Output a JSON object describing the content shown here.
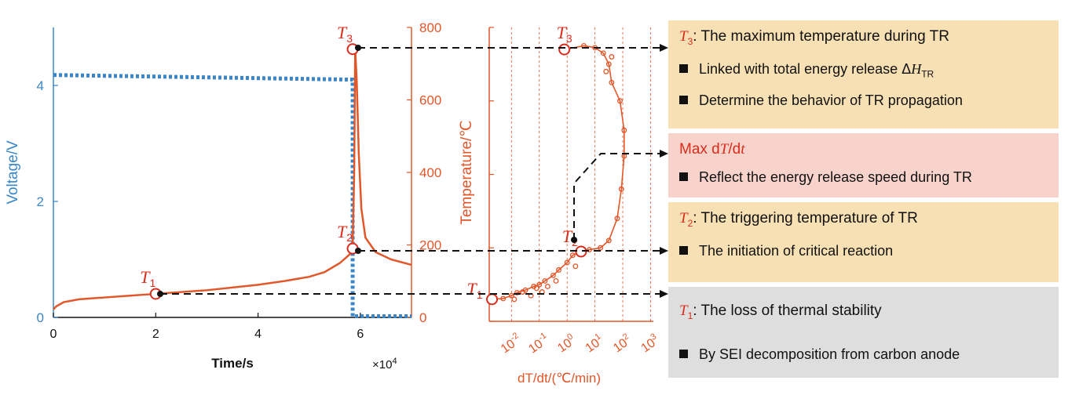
{
  "chart_data": [
    {
      "type": "line",
      "xlabel": "Time/s",
      "x_multiplier_label": "×10",
      "x_multiplier_exp": "4",
      "ylabel_left": "Voltage/V",
      "ylabel_right": "Temperature/℃",
      "xlim": [
        0,
        7
      ],
      "ylim_left": [
        0,
        5
      ],
      "ylim_right": [
        0,
        800
      ],
      "xticks": [
        "0",
        "2",
        "4",
        "6"
      ],
      "yticks_left": [
        "0",
        "2",
        "4"
      ],
      "yticks_right": [
        "0",
        "200",
        "400",
        "600",
        "800"
      ],
      "series": [
        {
          "axis": "left",
          "color": "#3a86c8",
          "style": "dotted",
          "x": [
            0,
            5.85,
            5.85,
            5.95,
            7.0
          ],
          "y": [
            4.18,
            4.1,
            0.02,
            0.02,
            0.02
          ]
        },
        {
          "axis": "right",
          "color": "#e2572a",
          "style": "solid",
          "x": [
            0,
            0.05,
            0.2,
            0.5,
            1.0,
            1.5,
            2.0,
            3.0,
            4.0,
            4.5,
            5.0,
            5.3,
            5.6,
            5.8,
            5.85,
            5.88,
            5.9,
            5.93,
            5.97,
            6.02,
            6.1,
            6.3,
            6.6,
            7.0
          ],
          "y": [
            22,
            30,
            42,
            50,
            55,
            60,
            65,
            75,
            90,
            100,
            112,
            125,
            150,
            175,
            200,
            400,
            740,
            650,
            450,
            300,
            220,
            180,
            160,
            145
          ]
        }
      ],
      "markers": [
        {
          "label": "T",
          "sub": "1",
          "x": 2.0,
          "temp": 65
        },
        {
          "label": "T",
          "sub": "2",
          "x": 5.85,
          "temp": 190
        },
        {
          "label": "T",
          "sub": "3",
          "x": 5.85,
          "temp": 740
        }
      ]
    },
    {
      "type": "scatter",
      "xscale": "log",
      "xlabel": "dT/dt/(℃/min)",
      "xlim_log10": [
        -2.8,
        3.1
      ],
      "ylim": [
        0,
        800
      ],
      "xticks": [
        {
          "exp": -2,
          "label": "10",
          "sup": "-2"
        },
        {
          "exp": -1,
          "label": "10",
          "sup": "-1"
        },
        {
          "exp": 0,
          "label": "10",
          "sup": "0"
        },
        {
          "exp": 1,
          "label": "10",
          "sup": "1"
        },
        {
          "exp": 2,
          "label": "10",
          "sup": "2"
        },
        {
          "exp": 3,
          "label": "10",
          "sup": "3"
        }
      ],
      "color": "#e2572a",
      "points": [
        [
          -2.7,
          60
        ],
        [
          -2.3,
          62
        ],
        [
          -2.0,
          70
        ],
        [
          -1.8,
          78
        ],
        [
          -1.5,
          85
        ],
        [
          -1.2,
          95
        ],
        [
          -1.0,
          100
        ],
        [
          -0.8,
          110
        ],
        [
          -0.5,
          125
        ],
        [
          -0.3,
          140
        ],
        [
          0.0,
          160
        ],
        [
          0.2,
          180
        ],
        [
          0.5,
          190
        ],
        [
          0.8,
          195
        ],
        [
          1.2,
          200
        ],
        [
          1.5,
          220
        ],
        [
          1.8,
          280
        ],
        [
          1.95,
          360
        ],
        [
          2.05,
          450
        ],
        [
          2.05,
          520
        ],
        [
          1.9,
          600
        ],
        [
          1.6,
          650
        ],
        [
          1.5,
          700
        ],
        [
          1.3,
          730
        ],
        [
          1.0,
          745
        ],
        [
          0.6,
          750
        ],
        [
          -0.1,
          740
        ],
        [
          1.4,
          680
        ],
        [
          1.6,
          720
        ],
        [
          -1.6,
          80
        ],
        [
          -1.3,
          70
        ],
        [
          -0.9,
          80
        ],
        [
          -0.7,
          95
        ],
        [
          -0.4,
          110
        ],
        [
          -1.9,
          60
        ],
        [
          -1.1,
          90
        ],
        [
          0.3,
          150
        ]
      ],
      "markers": [
        {
          "label": "T",
          "sub": "1",
          "x": -2.7,
          "temp": 60
        },
        {
          "label": "T",
          "sub": "2",
          "x": 0.5,
          "temp": 190
        },
        {
          "label": "T",
          "sub": "3",
          "x": -0.1,
          "temp": 740
        }
      ]
    }
  ],
  "boxes": [
    {
      "head_sym": "T",
      "head_sub": "3",
      "head_rest": ": The maximum temperature during TR",
      "bullets": [
        {
          "text": "Linked with total energy release Δ",
          "sym": "H",
          "sub": "TR"
        },
        {
          "text": "Determine the behavior of TR propagation"
        }
      ]
    },
    {
      "head_text": "Max d",
      "head_sym1": "T",
      "head_mid": "/d",
      "head_sym2": "t",
      "bullets": [
        {
          "text": "Reflect the energy release speed during TR"
        }
      ]
    },
    {
      "head_sym": "T",
      "head_sub": "2",
      "head_rest": ": The triggering temperature of TR",
      "bullets": [
        {
          "text": "The initiation of critical reaction"
        }
      ]
    },
    {
      "head_sym": "T",
      "head_sub": "1",
      "head_rest": ": The loss of thermal stability",
      "bullets": [
        {
          "text": "By SEI decomposition from carbon anode"
        }
      ]
    }
  ]
}
